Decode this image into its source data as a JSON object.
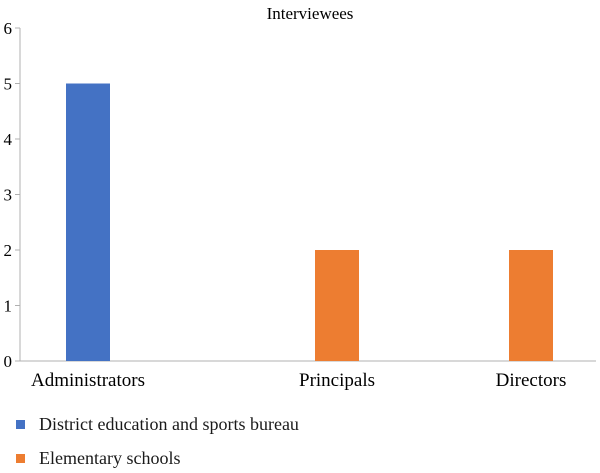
{
  "chart_data": {
    "type": "bar",
    "title": "Interviewees",
    "categories": [
      "Administrators",
      "Principals",
      "Directors"
    ],
    "series": [
      {
        "name": "District education and sports bureau",
        "color": "#4472C4",
        "values": [
          5,
          null,
          null
        ]
      },
      {
        "name": "Elementary schools",
        "color": "#ED7D31",
        "values": [
          null,
          2,
          2
        ]
      }
    ],
    "yticks": [
      "0",
      "1",
      "2",
      "3",
      "4",
      "5",
      "6"
    ],
    "ylim": [
      0,
      6
    ],
    "grid": false,
    "legend_position": "bottom-left"
  }
}
